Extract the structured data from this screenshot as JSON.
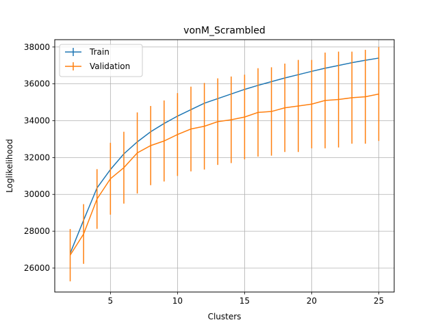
{
  "chart_data": {
    "type": "line",
    "title": "vonM_Scrambled",
    "xlabel": "Clusters",
    "ylabel": "Loglikelihood",
    "xlim": [
      0.85,
      26.15
    ],
    "ylim": [
      24700,
      38400
    ],
    "xticks": [
      5,
      10,
      15,
      20,
      25
    ],
    "yticks": [
      26000,
      28000,
      30000,
      32000,
      34000,
      36000,
      38000
    ],
    "grid": true,
    "legend_position": "top-left",
    "x": [
      2,
      3,
      4,
      5,
      6,
      7,
      8,
      9,
      10,
      11,
      12,
      13,
      14,
      15,
      16,
      17,
      18,
      19,
      20,
      21,
      22,
      23,
      24,
      25
    ],
    "series": [
      {
        "name": "Train",
        "color": "#1f77b4",
        "values": [
          26800,
          28600,
          30350,
          31350,
          32200,
          32850,
          33400,
          33850,
          34250,
          34600,
          34950,
          35200,
          35450,
          35700,
          35920,
          36120,
          36320,
          36500,
          36680,
          36850,
          37000,
          37150,
          37280,
          37400
        ],
        "errors": [
          0,
          0,
          0,
          0,
          0,
          0,
          0,
          0,
          0,
          0,
          0,
          0,
          0,
          0,
          0,
          0,
          0,
          0,
          0,
          0,
          0,
          0,
          0,
          0
        ]
      },
      {
        "name": "Validation",
        "color": "#ff7f0e",
        "values": [
          26700,
          27850,
          29750,
          30850,
          31450,
          32250,
          32650,
          32900,
          33250,
          33550,
          33700,
          33950,
          34050,
          34200,
          34450,
          34500,
          34700,
          34800,
          34900,
          35100,
          35150,
          35250,
          35300,
          35450
        ],
        "errors": [
          1420,
          1620,
          1620,
          1950,
          1950,
          2200,
          2150,
          2200,
          2250,
          2300,
          2350,
          2350,
          2350,
          2300,
          2400,
          2400,
          2400,
          2500,
          2400,
          2600,
          2600,
          2500,
          2550,
          2550
        ]
      }
    ]
  }
}
